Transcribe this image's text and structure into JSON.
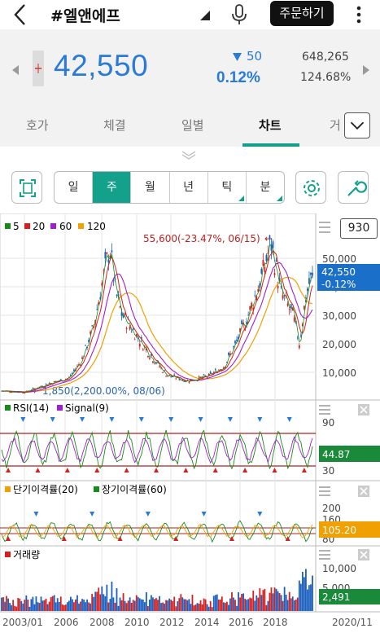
{
  "header": {
    "title": "#엘앤에프",
    "order_button": "주문하기"
  },
  "quote": {
    "price": "42,550",
    "change": "50",
    "change_pct": "0.12%",
    "volume": "648,265",
    "vol_ratio": "124.68%",
    "color": "#2a7ad8"
  },
  "tabs": [
    {
      "label": "호가"
    },
    {
      "label": "체결"
    },
    {
      "label": "일별"
    },
    {
      "label": "차트"
    },
    {
      "label": "거"
    }
  ],
  "periods": [
    {
      "label": "일"
    },
    {
      "label": "주"
    },
    {
      "label": "월"
    },
    {
      "label": "년"
    },
    {
      "label": "틱"
    },
    {
      "label": "분"
    }
  ],
  "chart": {
    "count_box": "930",
    "legend": [
      {
        "label": "5",
        "color": "#1a8a1a"
      },
      {
        "label": "20",
        "color": "#d42020"
      },
      {
        "label": "60",
        "color": "#a020d0"
      },
      {
        "label": "120",
        "color": "#f0a000"
      }
    ],
    "max_note": "55,600(-23.47%, 06/15)",
    "min_note": "1,850(2,200.00%, 08/06)",
    "price_tag": "42,550",
    "price_tag_pct": "-0.12%",
    "price_axis": [
      "50,000",
      "40,000",
      "30,000",
      "20,000",
      "10,000"
    ],
    "rsi_title": "RSI(14)",
    "signal_title": "Signal(9)",
    "rsi_axis": [
      "90",
      "30"
    ],
    "rsi_tag": "44.87",
    "disp_short": "단기이격률(20)",
    "disp_long": "장기이격률(60)",
    "disp_axis": [
      "200",
      "160",
      "80"
    ],
    "disp_tag": "105.20",
    "volume_title": "거래량",
    "vol_axis": [
      "10,000",
      "5,000"
    ],
    "vol_tag": "2,491",
    "x_axis": [
      "2003/01",
      "2006",
      "2008",
      "2010",
      "2012",
      "2014",
      "2016",
      "2018",
      "2020/11"
    ]
  }
}
